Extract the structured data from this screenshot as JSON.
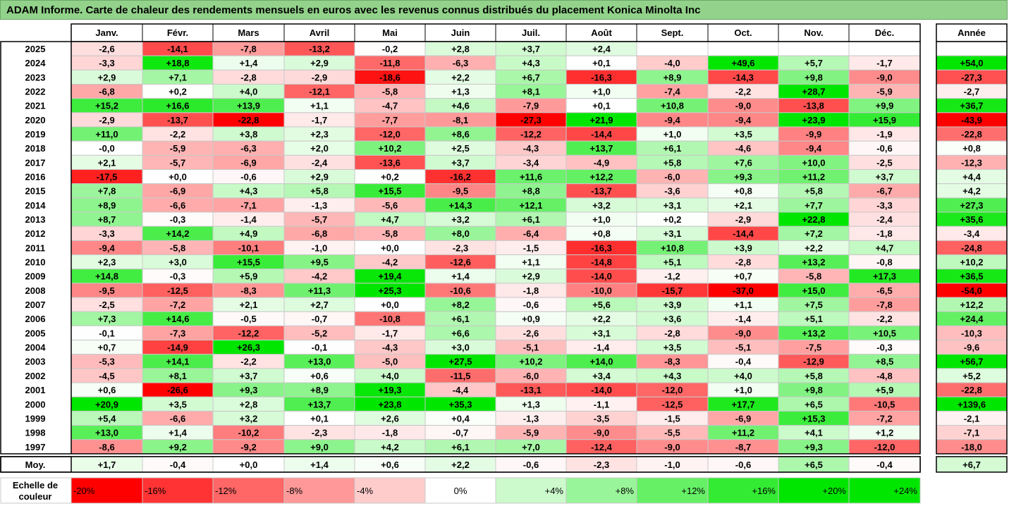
{
  "title": "ADAM Informe. Carte de chaleur des rendements mensuels en euros avec les revenus connus distribués du placement Konica Minolta Inc",
  "chart_data": {
    "type": "heatmap",
    "months": [
      "Janv.",
      "Févr.",
      "Mars",
      "Avril",
      "Mai",
      "Juin",
      "Juil.",
      "Août",
      "Sept.",
      "Oct.",
      "Nov.",
      "Déc."
    ],
    "year_header": "Année",
    "rows": [
      {
        "year": "2025",
        "m": [
          -2.6,
          -14.1,
          -7.8,
          -13.2,
          -0.2,
          2.8,
          3.7,
          2.4,
          null,
          null,
          null,
          null
        ],
        "y": null
      },
      {
        "year": "2024",
        "m": [
          -3.3,
          18.8,
          1.4,
          2.9,
          -11.8,
          -6.3,
          4.3,
          0.1,
          -4.0,
          49.6,
          5.7,
          -1.7
        ],
        "y": 54.0
      },
      {
        "year": "2023",
        "m": [
          2.9,
          7.1,
          -2.8,
          -2.9,
          -18.6,
          2.2,
          6.7,
          -16.3,
          8.9,
          -14.3,
          9.8,
          -9.0
        ],
        "y": -27.3
      },
      {
        "year": "2022",
        "m": [
          -6.8,
          0.2,
          4.0,
          -12.1,
          -5.8,
          1.3,
          8.1,
          1.0,
          -7.4,
          -2.2,
          28.7,
          -5.9
        ],
        "y": -2.7
      },
      {
        "year": "2021",
        "m": [
          15.2,
          16.6,
          13.9,
          1.1,
          -4.7,
          4.6,
          -7.9,
          0.1,
          10.8,
          -9.0,
          -13.8,
          9.9
        ],
        "y": 36.7
      },
      {
        "year": "2020",
        "m": [
          -2.9,
          -13.7,
          -22.8,
          -1.7,
          -7.7,
          -8.1,
          -27.3,
          21.9,
          -9.4,
          -9.4,
          23.9,
          15.9
        ],
        "y": -43.9
      },
      {
        "year": "2019",
        "m": [
          11.0,
          -2.2,
          3.8,
          2.3,
          -12.0,
          8.6,
          -12.2,
          -14.4,
          1.0,
          3.5,
          -9.9,
          -1.9
        ],
        "y": -22.8
      },
      {
        "year": "2018",
        "m": [
          -0.0,
          -5.9,
          -6.3,
          2.0,
          10.2,
          2.5,
          -4.3,
          13.7,
          6.1,
          -4.6,
          -9.4,
          -0.6
        ],
        "y": 0.8
      },
      {
        "year": "2017",
        "m": [
          2.1,
          -5.7,
          -6.9,
          -2.4,
          -13.6,
          3.7,
          -3.4,
          -4.9,
          5.8,
          7.6,
          10.0,
          -2.5
        ],
        "y": -12.3
      },
      {
        "year": "2016",
        "m": [
          -17.5,
          0.0,
          -0.6,
          2.9,
          0.2,
          -16.2,
          11.6,
          12.2,
          -6.0,
          9.3,
          11.2,
          3.7
        ],
        "y": 4.4
      },
      {
        "year": "2015",
        "m": [
          7.8,
          -6.9,
          4.3,
          5.8,
          15.5,
          -9.5,
          8.8,
          -13.7,
          -3.6,
          0.8,
          5.8,
          -6.7
        ],
        "y": 4.2
      },
      {
        "year": "2014",
        "m": [
          8.9,
          -6.6,
          -7.1,
          -1.3,
          -5.6,
          14.3,
          12.1,
          3.2,
          3.1,
          2.1,
          7.7,
          -3.3
        ],
        "y": 27.3
      },
      {
        "year": "2013",
        "m": [
          8.7,
          -0.3,
          -1.4,
          -5.7,
          4.7,
          3.2,
          6.1,
          1.0,
          0.2,
          -2.9,
          22.8,
          -2.4
        ],
        "y": 35.6
      },
      {
        "year": "2012",
        "m": [
          -3.3,
          14.2,
          4.9,
          -6.8,
          -5.8,
          8.0,
          -6.4,
          0.8,
          3.1,
          -14.4,
          7.2,
          -1.8
        ],
        "y": -3.4
      },
      {
        "year": "2011",
        "m": [
          -9.4,
          -5.8,
          -10.1,
          -1.0,
          0.0,
          -2.3,
          -1.5,
          -16.3,
          10.8,
          3.9,
          2.2,
          4.7
        ],
        "y": -24.8
      },
      {
        "year": "2010",
        "m": [
          2.3,
          3.0,
          15.5,
          9.5,
          -4.2,
          -12.6,
          1.1,
          -14.8,
          5.1,
          -2.8,
          13.2,
          -0.8
        ],
        "y": 10.2
      },
      {
        "year": "2009",
        "m": [
          14.8,
          -0.3,
          5.9,
          -4.2,
          19.4,
          1.4,
          2.9,
          -14.0,
          -1.2,
          0.7,
          -5.8,
          17.3
        ],
        "y": 36.5
      },
      {
        "year": "2008",
        "m": [
          -9.5,
          -12.5,
          -8.3,
          11.3,
          25.3,
          -10.6,
          -1.8,
          -10.0,
          -15.7,
          -37.0,
          15.0,
          -6.5
        ],
        "y": -54.0
      },
      {
        "year": "2007",
        "m": [
          -2.5,
          -7.2,
          2.1,
          2.7,
          0.0,
          8.2,
          -0.6,
          5.6,
          3.9,
          1.1,
          7.5,
          -7.8
        ],
        "y": 12.2
      },
      {
        "year": "2006",
        "m": [
          7.3,
          14.6,
          -0.5,
          -0.7,
          -10.8,
          6.1,
          0.9,
          2.2,
          3.6,
          -1.4,
          5.1,
          -2.2
        ],
        "y": 24.4
      },
      {
        "year": "2005",
        "m": [
          -0.1,
          -7.3,
          -12.2,
          -5.2,
          -1.7,
          6.6,
          -2.6,
          3.1,
          -2.8,
          -9.0,
          13.2,
          10.5
        ],
        "y": -10.3
      },
      {
        "year": "2004",
        "m": [
          0.7,
          -14.9,
          26.3,
          -0.1,
          -4.3,
          3.0,
          -5.1,
          -1.4,
          3.5,
          -5.1,
          -7.5,
          -0.3
        ],
        "y": -9.6
      },
      {
        "year": "2003",
        "m": [
          -5.3,
          14.1,
          -2.2,
          13.0,
          -5.0,
          27.5,
          10.2,
          14.0,
          -8.3,
          -0.4,
          -12.9,
          8.5
        ],
        "y": 56.7
      },
      {
        "year": "2002",
        "m": [
          -4.5,
          8.1,
          3.7,
          0.6,
          4.0,
          -11.5,
          -6.0,
          3.4,
          4.3,
          4.0,
          5.8,
          -4.8
        ],
        "y": 5.2
      },
      {
        "year": "2001",
        "m": [
          0.6,
          -26.6,
          9.3,
          8.9,
          19.3,
          -4.4,
          -13.1,
          -14.0,
          -12.0,
          1.0,
          9.8,
          5.9
        ],
        "y": -22.8
      },
      {
        "year": "2000",
        "m": [
          20.9,
          3.5,
          2.8,
          13.7,
          23.8,
          35.3,
          1.3,
          -1.1,
          -12.5,
          17.7,
          6.5,
          -10.5
        ],
        "y": 139.6
      },
      {
        "year": "1999",
        "m": [
          5.4,
          -6.6,
          3.2,
          0.1,
          2.6,
          0.4,
          -1.3,
          -3.5,
          -1.5,
          -6.9,
          15.3,
          -7.2
        ],
        "y": -2.1
      },
      {
        "year": "1998",
        "m": [
          13.0,
          1.4,
          -10.2,
          -2.3,
          -1.8,
          -0.7,
          -5.9,
          -9.0,
          -5.5,
          11.2,
          4.1,
          1.2
        ],
        "y": -7.1
      },
      {
        "year": "1997",
        "m": [
          -8.6,
          9.2,
          -9.2,
          9.0,
          4.2,
          6.1,
          7.0,
          -12.4,
          -9.0,
          -8.7,
          9.3,
          -12.0
        ],
        "y": -18.0
      }
    ],
    "average": {
      "label": "Moy.",
      "m": [
        1.7,
        -0.4,
        0.0,
        1.4,
        0.6,
        2.2,
        -0.6,
        -2.3,
        -1.0,
        -0.6,
        6.5,
        -0.4
      ],
      "y": 6.7
    },
    "scale": {
      "label_line1": "Echelle de",
      "label_line2": "couleur",
      "steps": [
        {
          "value": -20,
          "label": "-20%"
        },
        {
          "value": -16,
          "label": "-16%"
        },
        {
          "value": -12,
          "label": "-12%"
        },
        {
          "value": -8,
          "label": "-8%"
        },
        {
          "value": -4,
          "label": "-4%"
        },
        {
          "value": 0,
          "label": "0%"
        },
        {
          "value": 4,
          "label": "+4%"
        },
        {
          "value": 8,
          "label": "+8%"
        },
        {
          "value": 12,
          "label": "+12%"
        },
        {
          "value": 16,
          "label": "+16%"
        },
        {
          "value": 20,
          "label": "+20%"
        },
        {
          "value": 24,
          "label": "+24%"
        }
      ]
    }
  }
}
